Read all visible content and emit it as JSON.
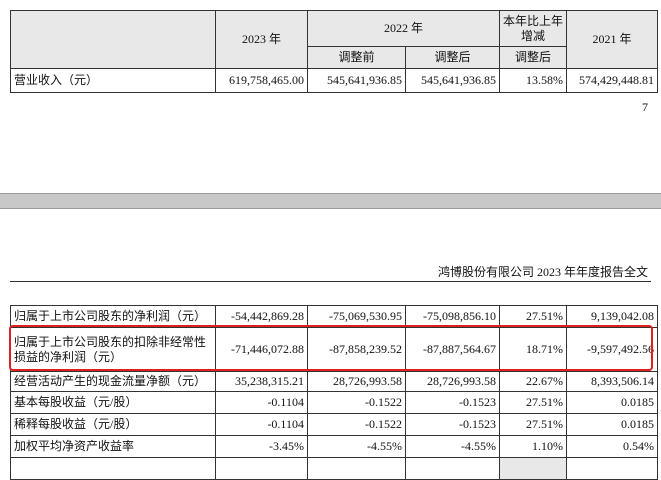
{
  "page_number": "7",
  "running_header": "鸿博股份有限公司 2023 年年度报告全文",
  "table_top": {
    "headers": {
      "y2023": "2023 年",
      "y2022": "2022 年",
      "before": "调整前",
      "after": "调整后",
      "change": "本年比上年增减",
      "change_sub": "调整后",
      "y2021": "2021 年"
    },
    "rows": [
      [
        "营业收入（元）",
        "619,758,465.00",
        "545,641,936.85",
        "545,641,936.85",
        "13.58%",
        "574,429,448.81"
      ]
    ]
  },
  "table_bottom": {
    "rows": [
      [
        "归属于上市公司股东的净利润（元）",
        "-54,442,869.28",
        "-75,069,530.95",
        "-75,098,856.10",
        "27.51%",
        "9,139,042.08"
      ],
      [
        "归属于上市公司股东的扣除非经常性损益的净利润（元）",
        "-71,446,072.88",
        "-87,858,239.52",
        "-87,887,564.67",
        "18.71%",
        "-9,597,492.56"
      ],
      [
        "经营活动产生的现金流量净额（元）",
        "35,238,315.21",
        "28,726,993.58",
        "28,726,993.58",
        "22.67%",
        "8,393,506.14"
      ],
      [
        "基本每股收益（元/股）",
        "-0.1104",
        "-0.1522",
        "-0.1523",
        "27.51%",
        "0.0185"
      ],
      [
        "稀释每股收益（元/股）",
        "-0.1104",
        "-0.1522",
        "-0.1523",
        "27.51%",
        "0.0185"
      ],
      [
        "加权平均净资产收益率",
        "-3.45%",
        "-4.55%",
        "-4.55%",
        "1.10%",
        "0.54%"
      ]
    ]
  }
}
